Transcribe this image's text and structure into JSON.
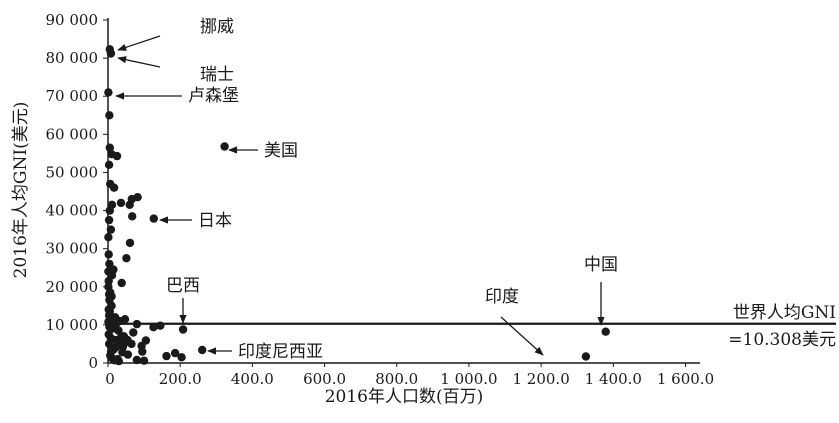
{
  "chart_data": {
    "type": "scatter",
    "xlabel": "2016年人口数(百万)",
    "ylabel": "2016年人均GNI(美元)",
    "xlim": [
      0,
      1600
    ],
    "ylim": [
      0,
      90000
    ],
    "x_tick_labels": [
      "0",
      "200.0",
      "400.0",
      "600.0",
      "800.0",
      "1 000.0",
      "1 200.0",
      "1 400.0",
      "1 600.0"
    ],
    "y_tick_labels": [
      "0",
      "10 000",
      "20 000",
      "30 000",
      "40 000",
      "50 000",
      "60 000",
      "70 000",
      "80 000",
      "90 000"
    ],
    "reference_line": {
      "y": 10308,
      "label_line1": "世界人均GNI",
      "label_line2": "=10.308美元"
    },
    "annotations": [
      {
        "text": "挪威",
        "x": 5,
        "y": 82300
      },
      {
        "text": "瑞士",
        "x": 8,
        "y": 81200
      },
      {
        "text": "卢森堡",
        "x": 1,
        "y": 71000
      },
      {
        "text": "美国",
        "x": 323,
        "y": 56800
      },
      {
        "text": "日本",
        "x": 127,
        "y": 37900
      },
      {
        "text": "巴西",
        "x": 208,
        "y": 8800
      },
      {
        "text": "中国",
        "x": 1379,
        "y": 8200
      },
      {
        "text": "印度",
        "x": 1324,
        "y": 1700
      },
      {
        "text": "印度尼西亚",
        "x": 261,
        "y": 3400
      }
    ],
    "points": [
      [
        5,
        82300
      ],
      [
        8,
        81200
      ],
      [
        1,
        71000
      ],
      [
        4,
        65000
      ],
      [
        323,
        56800
      ],
      [
        127,
        37900
      ],
      [
        208,
        8800
      ],
      [
        1379,
        8200
      ],
      [
        1324,
        1700
      ],
      [
        261,
        3400
      ],
      [
        5,
        56500
      ],
      [
        10,
        54800
      ],
      [
        25,
        54300
      ],
      [
        3,
        52000
      ],
      [
        6,
        47000
      ],
      [
        17,
        46000
      ],
      [
        82,
        43500
      ],
      [
        66,
        43000
      ],
      [
        60,
        41500
      ],
      [
        36,
        42000
      ],
      [
        11,
        41500
      ],
      [
        5,
        40000
      ],
      [
        67,
        38500
      ],
      [
        3,
        37500
      ],
      [
        8,
        35000
      ],
      [
        1,
        33000
      ],
      [
        61,
        31500
      ],
      [
        2,
        28500
      ],
      [
        51,
        27500
      ],
      [
        4,
        26000
      ],
      [
        15,
        24500
      ],
      [
        11,
        23000
      ],
      [
        2,
        21500
      ],
      [
        38,
        21000
      ],
      [
        1,
        20000
      ],
      [
        6,
        18500
      ],
      [
        10,
        17500
      ],
      [
        4,
        16500
      ],
      [
        10,
        15000
      ],
      [
        2,
        14000
      ],
      [
        5,
        13500
      ],
      [
        3,
        12500
      ],
      [
        20,
        12000
      ],
      [
        47,
        11500
      ],
      [
        32,
        11000
      ],
      [
        1,
        10800
      ],
      [
        24,
        10500
      ],
      [
        80,
        10200
      ],
      [
        145,
        9800
      ],
      [
        126,
        9400
      ],
      [
        4,
        9500
      ],
      [
        12,
        9000
      ],
      [
        29,
        8500
      ],
      [
        70,
        8000
      ],
      [
        44,
        7000
      ],
      [
        8,
        6500
      ],
      [
        54,
        6000
      ],
      [
        105,
        5900
      ],
      [
        30,
        5500
      ],
      [
        65,
        5000
      ],
      [
        3,
        5000
      ],
      [
        93,
        4500
      ],
      [
        41,
        4200
      ],
      [
        20,
        4000
      ],
      [
        15,
        3500
      ],
      [
        95,
        3000
      ],
      [
        186,
        2600
      ],
      [
        162,
        1800
      ],
      [
        204,
        1500
      ],
      [
        40,
        2800
      ],
      [
        55,
        2200
      ],
      [
        12,
        1200
      ],
      [
        27,
        1000
      ],
      [
        80,
        800
      ],
      [
        18,
        700
      ],
      [
        30,
        500
      ],
      [
        100,
        600
      ],
      [
        6,
        2000
      ],
      [
        9,
        3000
      ],
      [
        22,
        6000
      ],
      [
        37,
        7000
      ],
      [
        44,
        5000
      ],
      [
        2,
        7500
      ],
      [
        14,
        9800
      ],
      [
        7,
        11500
      ],
      [
        1,
        24000
      ],
      [
        3,
        18000
      ]
    ]
  }
}
